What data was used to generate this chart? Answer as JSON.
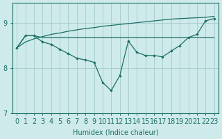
{
  "xlabel": "Humidex (Indice chaleur)",
  "x": [
    0,
    1,
    2,
    3,
    4,
    5,
    6,
    7,
    8,
    9,
    10,
    11,
    12,
    13,
    14,
    15,
    16,
    17,
    18,
    19,
    20,
    21,
    22,
    23
  ],
  "line_top": [
    8.45,
    8.58,
    8.65,
    8.7,
    8.75,
    8.78,
    8.82,
    8.85,
    8.88,
    8.9,
    8.93,
    8.95,
    8.97,
    8.99,
    9.01,
    9.03,
    9.05,
    9.07,
    9.09,
    9.1,
    9.11,
    9.12,
    9.13,
    9.15
  ],
  "line_flat": [
    8.45,
    8.72,
    8.72,
    8.68,
    8.68,
    8.68,
    8.68,
    8.68,
    8.68,
    8.68,
    8.68,
    8.68,
    8.68,
    8.68,
    8.68,
    8.68,
    8.68,
    8.68,
    8.68,
    8.68,
    8.68,
    8.68,
    8.68,
    8.68
  ],
  "line_zigzag": [
    8.45,
    8.72,
    8.72,
    8.58,
    8.53,
    8.42,
    8.32,
    8.22,
    8.18,
    8.13,
    7.68,
    7.5,
    7.83,
    8.6,
    8.35,
    8.28,
    8.28,
    8.25,
    8.38,
    8.5,
    8.68,
    8.75,
    9.05,
    9.1
  ],
  "bg_color": "#ceeaea",
  "line_color": "#1a6e65",
  "grid_color": "#aacfcf",
  "ylim": [
    7.0,
    9.45
  ],
  "yticks": [
    7,
    8,
    9
  ],
  "xtick_labels": [
    "0",
    "1",
    "2",
    "3",
    "4",
    "5",
    "6",
    "7",
    "8",
    "9",
    "10",
    "11",
    "12",
    "13",
    "14",
    "15",
    "16",
    "17",
    "18",
    "19",
    "20",
    "21",
    "22",
    "23"
  ],
  "fontsize": 7.0
}
